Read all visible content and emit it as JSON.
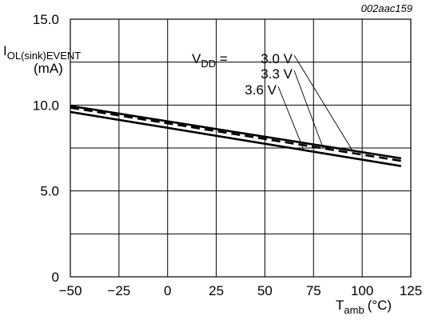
{
  "figure_id": "002aac159",
  "chart_data": {
    "type": "line",
    "title": "",
    "ylabel": {
      "main": "I",
      "sub": "OL(sink)EVENT",
      "unit": "(mA)"
    },
    "xlabel": {
      "main": "T",
      "sub": "amb",
      "unit": "(°C)"
    },
    "xlim": [
      -50,
      125
    ],
    "ylim": [
      0,
      15
    ],
    "x_ticks": [
      -50,
      -25,
      0,
      25,
      50,
      75,
      100,
      125
    ],
    "x_tick_labels": [
      "−50",
      "−25",
      "0",
      "25",
      "50",
      "75",
      "100",
      "125"
    ],
    "y_ticks": [
      0,
      5,
      10,
      15
    ],
    "y_tick_labels": [
      "0",
      "5.0",
      "10.0",
      "15.0"
    ],
    "grid": true,
    "series_annotation_prefix": {
      "main": "V",
      "sub": "DD",
      "eq": " = "
    },
    "series": [
      {
        "name": "3.0 V",
        "style": "solid",
        "x": [
          -50,
          120
        ],
        "y": [
          9.95,
          6.9
        ],
        "pointer_x": 95
      },
      {
        "name": "3.3 V",
        "style": "dashed",
        "x": [
          -50,
          120
        ],
        "y": [
          9.85,
          6.75
        ],
        "pointer_x": 80
      },
      {
        "name": "3.6 V",
        "style": "solid",
        "x": [
          -50,
          120
        ],
        "y": [
          9.6,
          6.45
        ],
        "pointer_x": 70
      }
    ]
  }
}
